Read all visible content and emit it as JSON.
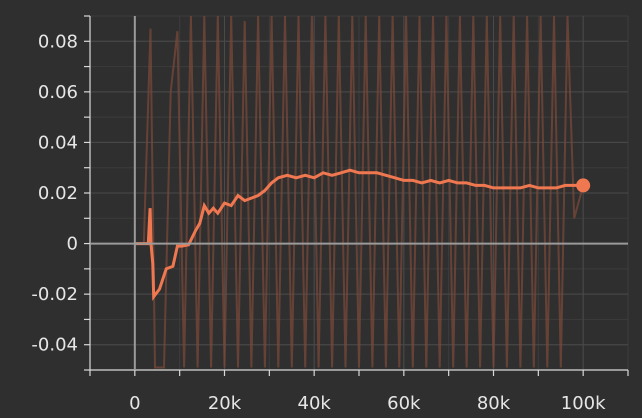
{
  "chart_data": {
    "type": "line",
    "title": "",
    "xlabel": "",
    "ylabel": "",
    "xlim": [
      -10000,
      110000
    ],
    "ylim": [
      -0.05,
      0.09
    ],
    "x_ticks": [
      0,
      20000,
      40000,
      60000,
      80000,
      100000
    ],
    "x_tick_labels": [
      "0",
      "20k",
      "40k",
      "60k",
      "80k",
      "100k"
    ],
    "y_ticks": [
      -0.04,
      -0.02,
      0,
      0.02,
      0.04,
      0.06,
      0.08
    ],
    "y_tick_labels": [
      "-0.04",
      "-0.02",
      "0",
      "0.02",
      "0.04",
      "0.06",
      "0.08"
    ],
    "grid": true,
    "colors": {
      "smoothed": "#f07850",
      "raw": "#7a4a3a",
      "background": "#2f2f2f"
    },
    "series": [
      {
        "style": "smoothed",
        "x": [
          0,
          3000,
          3400,
          3600,
          4000,
          4200,
          5500,
          7000,
          8500,
          9500,
          10500,
          12000,
          13500,
          14500,
          15500,
          16500,
          17500,
          18500,
          20000,
          21500,
          23000,
          24500,
          26000,
          27500,
          29000,
          30500,
          32000,
          34000,
          36000,
          38000,
          40000,
          42000,
          44000,
          46000,
          48000,
          50000,
          52000,
          54000,
          56000,
          58000,
          60000,
          62000,
          64000,
          66000,
          68000,
          70000,
          72000,
          74000,
          76000,
          78000,
          80000,
          82000,
          84000,
          86000,
          88000,
          90000,
          92000,
          94000,
          96000,
          98000,
          100000
        ],
        "values": [
          0,
          0,
          0.014,
          0,
          -0.008,
          -0.021,
          -0.018,
          -0.01,
          -0.009,
          -0.001,
          -0.001,
          -0.0005,
          0.005,
          0.008,
          0.015,
          0.012,
          0.014,
          0.012,
          0.016,
          0.015,
          0.019,
          0.017,
          0.018,
          0.019,
          0.021,
          0.024,
          0.026,
          0.027,
          0.026,
          0.027,
          0.026,
          0.028,
          0.027,
          0.028,
          0.029,
          0.028,
          0.028,
          0.028,
          0.027,
          0.026,
          0.025,
          0.025,
          0.024,
          0.025,
          0.024,
          0.025,
          0.024,
          0.024,
          0.023,
          0.023,
          0.022,
          0.022,
          0.022,
          0.022,
          0.023,
          0.022,
          0.022,
          0.022,
          0.023,
          0.023,
          0.023
        ]
      },
      {
        "style": "raw",
        "x": [
          0,
          2000,
          3500,
          4500,
          6500,
          8000,
          9500,
          11000,
          12500,
          14000,
          15500,
          17000,
          18500,
          20000,
          21500,
          23000,
          24500,
          26000,
          27500,
          29000,
          30500,
          32000,
          33500,
          35000,
          36500,
          38000,
          39500,
          41000,
          42500,
          44000,
          45500,
          47000,
          48500,
          50000,
          51500,
          53000,
          54500,
          56000,
          57500,
          59000,
          60500,
          62000,
          63500,
          65000,
          66500,
          68000,
          69500,
          71000,
          72500,
          74000,
          75500,
          77000,
          78500,
          80000,
          81500,
          83000,
          84500,
          86000,
          87500,
          89000,
          90500,
          92000,
          93500,
          95000,
          96500,
          98000,
          100000
        ],
        "values": [
          0,
          0,
          0.085,
          -0.049,
          -0.049,
          0.06,
          0.084,
          -0.049,
          0.09,
          -0.049,
          0.09,
          -0.049,
          0.09,
          -0.049,
          0.09,
          -0.049,
          0.088,
          -0.049,
          0.09,
          -0.049,
          0.09,
          -0.049,
          0.09,
          -0.049,
          0.09,
          -0.049,
          0.09,
          -0.049,
          0.09,
          -0.049,
          0.09,
          -0.049,
          0.09,
          -0.049,
          0.09,
          -0.049,
          0.09,
          -0.049,
          0.09,
          -0.049,
          0.09,
          -0.049,
          0.09,
          -0.049,
          0.09,
          -0.049,
          0.09,
          -0.049,
          0.09,
          -0.049,
          0.09,
          -0.049,
          0.09,
          -0.049,
          0.09,
          -0.049,
          0.09,
          -0.049,
          0.09,
          -0.049,
          0.09,
          -0.049,
          0.09,
          -0.049,
          0.09,
          0.01,
          0.023
        ]
      }
    ]
  }
}
